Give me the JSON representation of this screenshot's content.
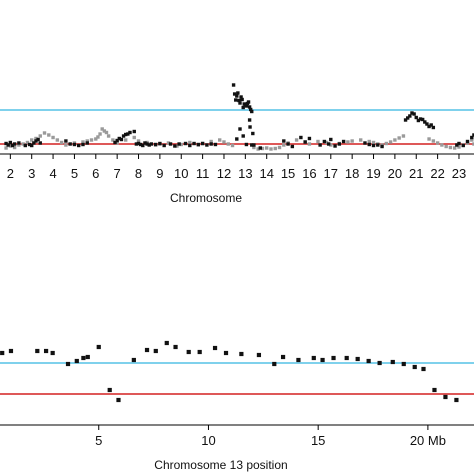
{
  "colors": {
    "threshold_blue": "#55c2e6",
    "threshold_red": "#d42020",
    "marker_dark": "#111111",
    "marker_gray": "#9a9a9a",
    "axis": "#000000"
  },
  "chart_data": [
    {
      "type": "scatter",
      "title": "",
      "xlabel": "Chromosome",
      "ylabel": "",
      "grid": false,
      "x_tick_labels": [
        "2",
        "3",
        "4",
        "5",
        "6",
        "7",
        "8",
        "9",
        "10",
        "11",
        "12",
        "13",
        "14",
        "15",
        "16",
        "17",
        "18",
        "19",
        "20",
        "21",
        "22",
        "23"
      ],
      "x_tick_positions": [
        2,
        3,
        4,
        5,
        6,
        7,
        8,
        9,
        10,
        11,
        12,
        13,
        14,
        15,
        16,
        17,
        18,
        19,
        20,
        21,
        22,
        23
      ],
      "xlim": [
        1.75,
        23.75
      ],
      "ylim": [
        0.0,
        1.6
      ],
      "reference_lines": [
        {
          "y": 0.9,
          "color": "#55c2e6"
        },
        {
          "y": 0.22,
          "color": "#d42020"
        }
      ],
      "series": [
        {
          "color": "dark",
          "x": [
            1.8,
            1.9,
            2.0,
            2.1,
            2.2,
            2.4,
            2.7,
            2.9,
            3.0,
            3.1,
            3.2,
            3.3,
            3.4,
            4.6,
            4.8,
            5.0,
            5.2,
            5.4,
            5.6,
            6.9,
            7.0,
            7.1,
            7.2,
            7.3,
            7.4,
            7.5,
            7.6,
            7.8,
            7.9,
            8.0,
            8.1,
            8.2,
            8.3,
            8.4,
            8.5,
            8.6,
            8.8,
            9.0,
            9.2,
            9.5,
            9.7,
            9.9,
            10.2,
            10.4,
            10.6,
            10.8,
            11.0,
            11.2,
            11.4,
            11.6,
            12.45,
            12.5,
            12.55,
            12.6,
            12.65,
            12.7,
            12.75,
            12.8,
            12.85,
            12.9,
            12.95,
            13.0,
            13.05,
            13.1,
            13.15,
            13.2,
            13.25,
            13.3,
            12.6,
            12.75,
            12.9,
            13.05,
            13.2,
            13.22,
            13.3,
            13.35,
            13.4,
            13.7,
            14.8,
            15.0,
            15.2,
            15.6,
            15.8,
            16.0,
            16.5,
            16.7,
            16.9,
            17.0,
            17.2,
            17.4,
            17.6,
            18.6,
            18.8,
            19.0,
            19.2,
            19.4,
            20.5,
            20.6,
            20.7,
            20.8,
            20.9,
            21.0,
            21.1,
            21.2,
            21.3,
            21.4,
            21.5,
            21.6,
            21.7,
            21.8,
            22.9,
            23.0,
            23.2,
            23.4,
            23.6,
            23.7
          ],
          "y": [
            0.23,
            0.2,
            0.25,
            0.19,
            0.22,
            0.24,
            0.19,
            0.21,
            0.19,
            0.24,
            0.28,
            0.31,
            0.24,
            0.28,
            0.22,
            0.21,
            0.19,
            0.21,
            0.24,
            0.25,
            0.29,
            0.33,
            0.31,
            0.38,
            0.41,
            0.42,
            0.45,
            0.47,
            0.22,
            0.23,
            0.21,
            0.19,
            0.24,
            0.22,
            0.2,
            0.22,
            0.21,
            0.23,
            0.19,
            0.22,
            0.18,
            0.22,
            0.23,
            0.19,
            0.23,
            0.21,
            0.23,
            0.2,
            0.22,
            0.21,
            1.4,
            1.22,
            1.1,
            1.18,
            1.24,
            1.09,
            1.04,
            1.16,
            1.11,
            0.95,
            1.02,
            1.0,
            0.98,
            1.03,
            1.06,
            0.96,
            0.91,
            0.87,
            0.32,
            0.52,
            0.38,
            0.21,
            0.7,
            0.56,
            0.2,
            0.43,
            0.2,
            0.14,
            0.28,
            0.22,
            0.17,
            0.35,
            0.26,
            0.33,
            0.2,
            0.27,
            0.22,
            0.31,
            0.18,
            0.22,
            0.27,
            0.24,
            0.21,
            0.19,
            0.2,
            0.17,
            0.7,
            0.74,
            0.78,
            0.84,
            0.82,
            0.75,
            0.69,
            0.72,
            0.71,
            0.66,
            0.62,
            0.57,
            0.6,
            0.55,
            0.2,
            0.23,
            0.19,
            0.27,
            0.35,
            0.4
          ]
        },
        {
          "color": "gray",
          "x": [
            1.8,
            2.0,
            2.2,
            2.4,
            2.6,
            2.8,
            3.0,
            3.2,
            3.4,
            3.6,
            3.8,
            4.0,
            4.2,
            4.4,
            4.6,
            5.0,
            5.4,
            5.6,
            5.8,
            6.0,
            6.1,
            6.2,
            6.3,
            6.4,
            6.5,
            6.6,
            6.8,
            7.0,
            7.4,
            7.8,
            8.0,
            8.4,
            8.8,
            9.0,
            9.4,
            9.8,
            10.0,
            10.4,
            10.8,
            11.0,
            11.4,
            11.8,
            12.0,
            12.2,
            12.4,
            13.4,
            13.6,
            13.8,
            14.0,
            14.2,
            14.4,
            14.6,
            14.8,
            15.0,
            15.4,
            15.8,
            16.0,
            16.4,
            16.8,
            17.0,
            17.4,
            17.8,
            18.0,
            18.4,
            18.8,
            19.0,
            19.2,
            19.4,
            19.6,
            19.8,
            20.0,
            20.2,
            20.4,
            21.6,
            21.8,
            22.0,
            22.2,
            22.4,
            22.6,
            22.8,
            23.0,
            23.2,
            23.4,
            23.6,
            23.7
          ],
          "y": [
            0.14,
            0.18,
            0.15,
            0.2,
            0.22,
            0.25,
            0.3,
            0.33,
            0.38,
            0.44,
            0.4,
            0.35,
            0.3,
            0.25,
            0.2,
            0.24,
            0.26,
            0.28,
            0.3,
            0.32,
            0.36,
            0.42,
            0.52,
            0.48,
            0.45,
            0.38,
            0.3,
            0.24,
            0.3,
            0.35,
            0.28,
            0.25,
            0.2,
            0.22,
            0.24,
            0.18,
            0.21,
            0.25,
            0.2,
            0.23,
            0.27,
            0.3,
            0.26,
            0.22,
            0.19,
            0.15,
            0.12,
            0.13,
            0.14,
            0.12,
            0.13,
            0.15,
            0.2,
            0.24,
            0.3,
            0.26,
            0.22,
            0.27,
            0.25,
            0.2,
            0.23,
            0.26,
            0.28,
            0.3,
            0.27,
            0.25,
            0.22,
            0.2,
            0.23,
            0.26,
            0.3,
            0.34,
            0.38,
            0.32,
            0.28,
            0.24,
            0.2,
            0.17,
            0.15,
            0.14,
            0.16,
            0.2,
            0.24,
            0.3,
            0.22
          ]
        }
      ]
    },
    {
      "type": "scatter",
      "title": "",
      "xlabel": "Chromosome 13 position",
      "ylabel": "",
      "grid": false,
      "x_tick_labels": [
        "5",
        "10",
        "15",
        "20 Mb"
      ],
      "x_tick_positions": [
        5,
        10,
        15,
        20
      ],
      "xlim": [
        0.5,
        21.6
      ],
      "ylim": [
        0.0,
        1.0
      ],
      "reference_lines": [
        {
          "y": 0.62,
          "color": "#55c2e6"
        },
        {
          "y": 0.31,
          "color": "#d42020"
        }
      ],
      "series": [
        {
          "color": "dark",
          "x": [
            0.6,
            1.0,
            2.2,
            2.6,
            2.9,
            3.6,
            4.0,
            4.3,
            4.5,
            5.0,
            5.5,
            5.9,
            6.6,
            7.2,
            7.6,
            8.1,
            8.5,
            9.1,
            9.6,
            10.3,
            10.8,
            11.5,
            12.3,
            13.0,
            13.4,
            14.1,
            14.8,
            15.2,
            15.7,
            16.3,
            16.8,
            17.3,
            17.8,
            18.4,
            18.9,
            19.4,
            19.8,
            20.3,
            20.8,
            21.3
          ],
          "y": [
            0.72,
            0.74,
            0.74,
            0.74,
            0.72,
            0.61,
            0.64,
            0.67,
            0.68,
            0.78,
            0.35,
            0.25,
            0.65,
            0.75,
            0.74,
            0.82,
            0.78,
            0.73,
            0.73,
            0.77,
            0.72,
            0.71,
            0.7,
            0.61,
            0.68,
            0.65,
            0.67,
            0.65,
            0.67,
            0.67,
            0.66,
            0.64,
            0.62,
            0.63,
            0.61,
            0.58,
            0.56,
            0.35,
            0.28,
            0.25
          ]
        }
      ]
    }
  ]
}
